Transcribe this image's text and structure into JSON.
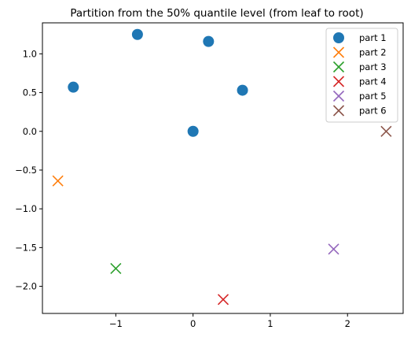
{
  "chart_data": {
    "type": "scatter",
    "title": "Partition from the 50% quantile level (from leaf to root)",
    "xlabel": "",
    "ylabel": "",
    "xlim": [
      -1.95,
      2.72
    ],
    "ylim": [
      -2.35,
      1.4
    ],
    "xticks": [
      -1,
      0,
      1,
      2
    ],
    "xtick_labels": [
      "−1",
      "0",
      "1",
      "2"
    ],
    "yticks": [
      1.0,
      0.5,
      0.0,
      -0.5,
      -1.0,
      -1.5,
      -2.0
    ],
    "ytick_labels": [
      "1.0",
      "0.5",
      "0.0",
      "−0.5",
      "−1.0",
      "−1.5",
      "−2.0"
    ],
    "grid": false,
    "legend_position": "top-right",
    "series": [
      {
        "name": "part 1",
        "marker": "circle",
        "color": "#1f77b4",
        "points": [
          {
            "x": -1.55,
            "y": 0.57
          },
          {
            "x": -0.72,
            "y": 1.25
          },
          {
            "x": 0.2,
            "y": 1.16
          },
          {
            "x": 0.64,
            "y": 0.53
          },
          {
            "x": 0.0,
            "y": 0.0
          }
        ]
      },
      {
        "name": "part 2",
        "marker": "x",
        "color": "#ff7f0e",
        "points": [
          {
            "x": -1.75,
            "y": -0.64
          }
        ]
      },
      {
        "name": "part 3",
        "marker": "x",
        "color": "#2ca02c",
        "points": [
          {
            "x": -1.0,
            "y": -1.77
          }
        ]
      },
      {
        "name": "part 4",
        "marker": "x",
        "color": "#d62728",
        "points": [
          {
            "x": 0.39,
            "y": -2.17
          }
        ]
      },
      {
        "name": "part 5",
        "marker": "x",
        "color": "#9467bd",
        "points": [
          {
            "x": 1.82,
            "y": -1.52
          }
        ]
      },
      {
        "name": "part 6",
        "marker": "x",
        "color": "#8c564b",
        "points": [
          {
            "x": 2.5,
            "y": 0.0
          }
        ]
      }
    ]
  }
}
